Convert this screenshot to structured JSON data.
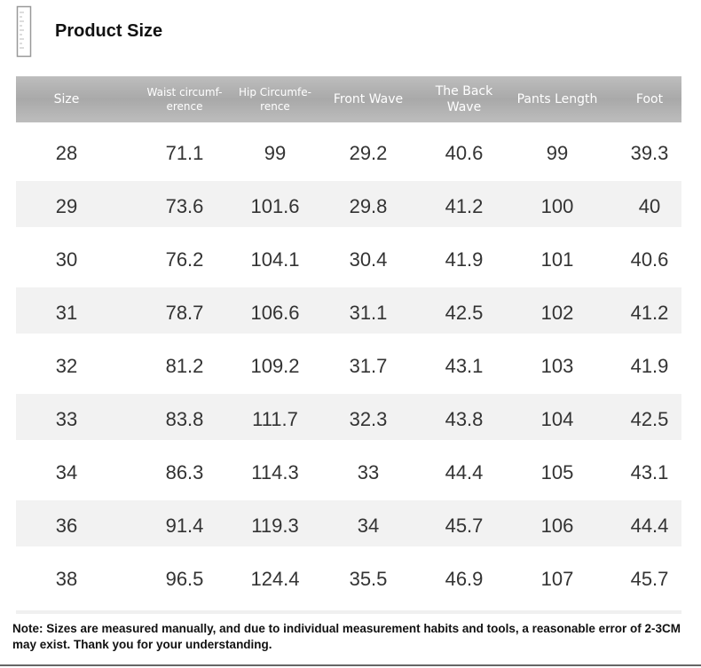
{
  "header": {
    "title": "Product Size"
  },
  "table": {
    "columns": [
      [
        "Size"
      ],
      [
        "Waist circumf-",
        "erence"
      ],
      [
        "Hip Circumfe-",
        "rence"
      ],
      [
        "Front Wave"
      ],
      [
        "The Back",
        "Wave"
      ],
      [
        "Pants Length"
      ],
      [
        "Foot"
      ]
    ],
    "rows": [
      [
        28,
        71.1,
        99,
        29.2,
        40.6,
        99,
        39.3
      ],
      [
        29,
        73.6,
        101.6,
        29.8,
        41.2,
        100,
        40
      ],
      [
        30,
        76.2,
        104.1,
        30.4,
        41.9,
        101,
        40.6
      ],
      [
        31,
        78.7,
        106.6,
        31.1,
        42.5,
        102,
        41.2
      ],
      [
        32,
        81.2,
        109.2,
        31.7,
        43.1,
        103,
        41.9
      ],
      [
        33,
        83.8,
        111.7,
        32.3,
        43.8,
        104,
        42.5
      ],
      [
        34,
        86.3,
        114.3,
        33,
        44.4,
        105,
        43.1
      ],
      [
        36,
        91.4,
        119.3,
        34,
        45.7,
        106,
        44.4
      ],
      [
        38,
        96.5,
        124.4,
        35.5,
        46.9,
        107,
        45.7
      ]
    ]
  },
  "note": "Note: Sizes are measured manually, and due to individual measurement habits and tools, a reasonable error of 2-3CM may exist. Thank you for your understanding."
}
